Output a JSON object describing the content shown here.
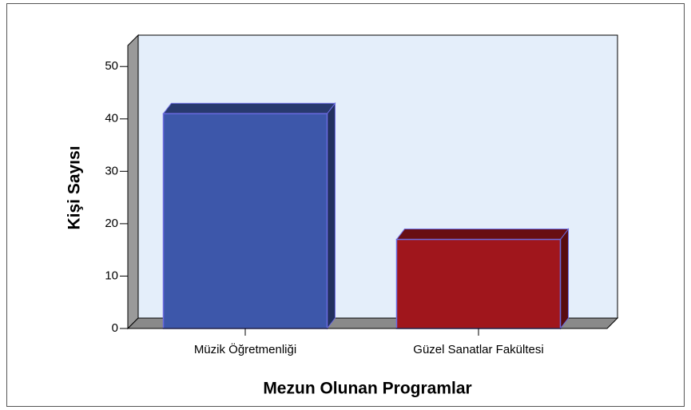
{
  "chart_data": {
    "type": "bar3d",
    "x_label": "Mezun Olunan Programlar",
    "y_label": "Kişi Sayısı",
    "categories": [
      "Müzik Öğretmenliği",
      "Güzel Sanatlar Fakültesi"
    ],
    "values": [
      41,
      17
    ],
    "colors": [
      "#3d57aa",
      "#a0161c"
    ],
    "ylim": [
      0,
      54
    ],
    "yticks": [
      0,
      10,
      20,
      30,
      40,
      50
    ],
    "wall_color": "#e4eefa"
  }
}
